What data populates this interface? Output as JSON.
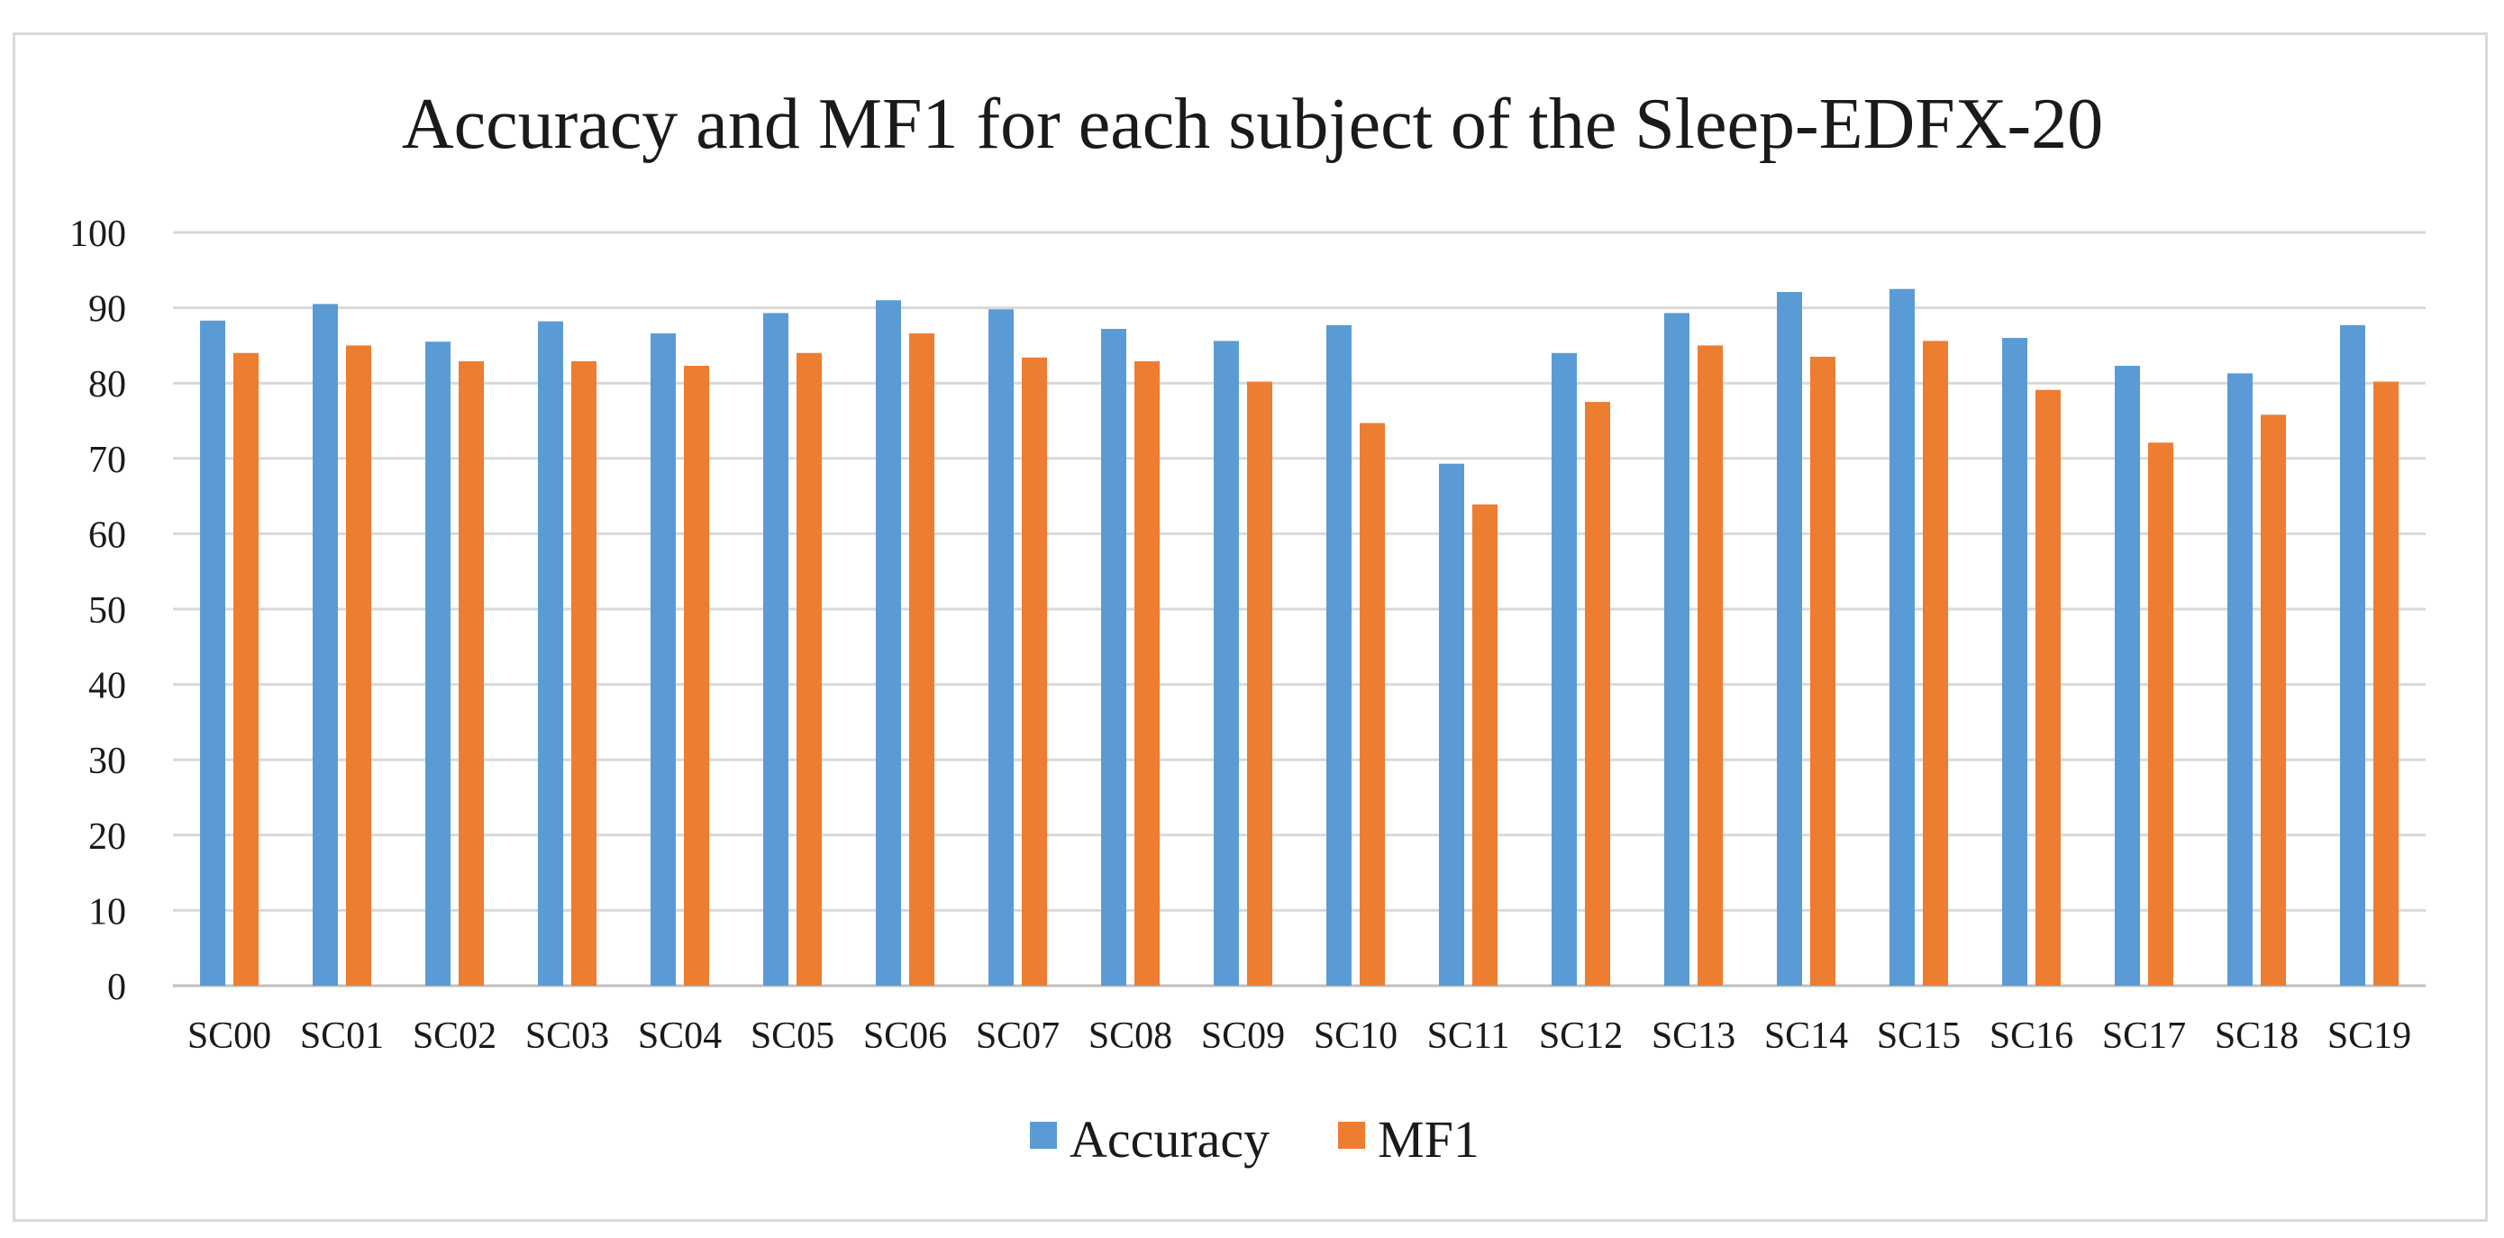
{
  "chart_data": {
    "type": "bar",
    "title": "Accuracy and MF1 for each subject of the Sleep-EDFX-20",
    "xlabel": "",
    "ylabel": "",
    "ylim": [
      0,
      100
    ],
    "yticks": [
      0,
      10,
      20,
      30,
      40,
      50,
      60,
      70,
      80,
      90,
      100
    ],
    "grid": true,
    "legend_position": "bottom",
    "categories": [
      "SC00",
      "SC01",
      "SC02",
      "SC03",
      "SC04",
      "SC05",
      "SC06",
      "SC07",
      "SC08",
      "SC09",
      "SC10",
      "SC11",
      "SC12",
      "SC13",
      "SC14",
      "SC15",
      "SC16",
      "SC17",
      "SC18",
      "SC19"
    ],
    "series": [
      {
        "name": "Accuracy",
        "color": "#5b9bd5",
        "values": [
          88.3,
          90.5,
          85.5,
          88.2,
          86.6,
          89.3,
          91.0,
          89.8,
          87.2,
          85.6,
          87.7,
          69.3,
          84.0,
          89.3,
          92.1,
          92.5,
          86.0,
          82.3,
          81.3,
          87.7
        ]
      },
      {
        "name": "MF1",
        "color": "#ed7d31",
        "values": [
          84.0,
          85.0,
          82.9,
          82.9,
          82.3,
          84.0,
          86.6,
          83.4,
          82.9,
          80.2,
          74.7,
          63.9,
          77.5,
          85.0,
          83.5,
          85.6,
          79.1,
          72.1,
          75.8,
          80.2
        ]
      }
    ]
  }
}
